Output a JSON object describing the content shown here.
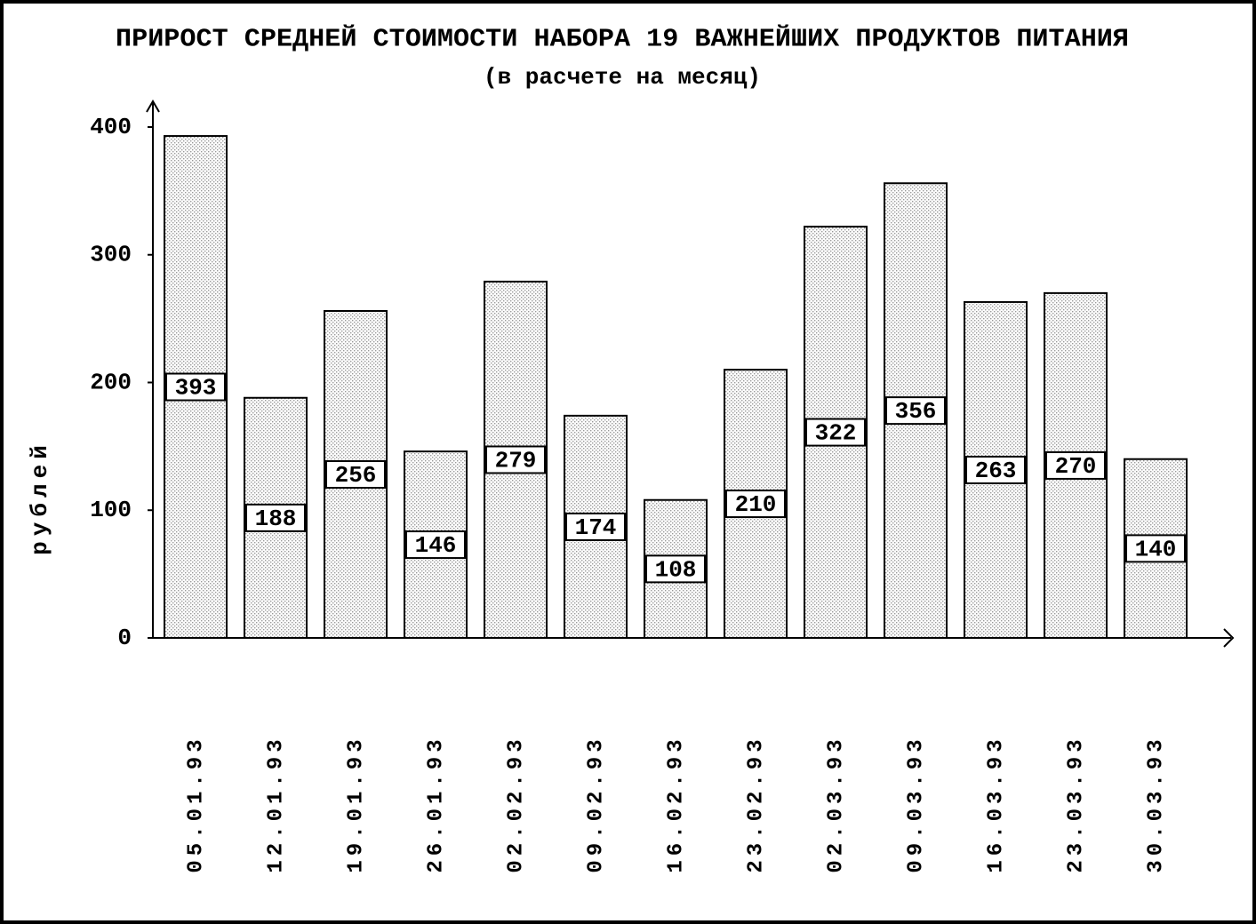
{
  "chart_data": {
    "type": "bar",
    "title": "ПРИРОСТ СРЕДНЕЙ СТОИМОСТИ НАБОРА 19 ВАЖНЕЙШИХ ПРОДУКТОВ ПИТАНИЯ",
    "subtitle": "(в расчете на месяц)",
    "y_label": "рублей",
    "categories": [
      "05.01.93",
      "12.01.93",
      "19.01.93",
      "26.01.93",
      "02.02.93",
      "09.02.93",
      "16.02.93",
      "23.02.93",
      "02.03.93",
      "09.03.93",
      "16.03.93",
      "23.03.93",
      "30.03.93"
    ],
    "values": [
      393,
      188,
      256,
      146,
      279,
      174,
      108,
      210,
      322,
      356,
      263,
      270,
      140
    ],
    "color": "#9a9a9a",
    "ylim": [
      0,
      400
    ],
    "yticks": [
      0,
      100,
      200,
      300,
      400
    ],
    "grid": false
  }
}
